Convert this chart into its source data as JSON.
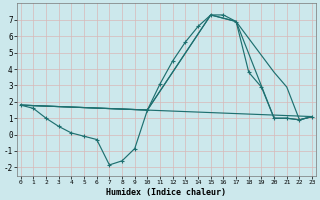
{
  "xlabel": "Humidex (Indice chaleur)",
  "bg_color": "#cce8ec",
  "grid_color": "#e8e8e8",
  "line_color": "#1e7070",
  "xlim": [
    0,
    23
  ],
  "ylim": [
    -2.5,
    8.0
  ],
  "yticks": [
    -2,
    -1,
    0,
    1,
    2,
    3,
    4,
    5,
    6,
    7
  ],
  "xticks": [
    0,
    1,
    2,
    3,
    4,
    5,
    6,
    7,
    8,
    9,
    10,
    11,
    12,
    13,
    14,
    15,
    16,
    17,
    18,
    19,
    20,
    21,
    22,
    23
  ],
  "line1_x": [
    0,
    1,
    2,
    3,
    4,
    5,
    6,
    7,
    8,
    9,
    10,
    11,
    12,
    13,
    14,
    15,
    16,
    17,
    18,
    19,
    20,
    21,
    22,
    23
  ],
  "line1_y": [
    1.8,
    1.6,
    1.0,
    0.5,
    0.1,
    -0.1,
    -0.3,
    -1.85,
    -1.6,
    -0.85,
    1.5,
    3.1,
    4.5,
    5.65,
    6.6,
    7.3,
    7.3,
    6.9,
    3.8,
    2.9,
    1.0,
    1.0,
    0.9,
    1.1
  ],
  "line2_x": [
    0,
    23
  ],
  "line2_y": [
    1.8,
    1.1
  ],
  "line3_x": [
    0,
    10,
    15,
    17,
    20,
    21,
    22,
    23
  ],
  "line3_y": [
    1.8,
    1.5,
    7.3,
    6.9,
    3.8,
    2.9,
    0.9,
    1.1
  ],
  "line4_x": [
    0,
    10,
    15,
    17,
    20,
    21,
    22,
    23
  ],
  "line4_y": [
    1.8,
    1.5,
    7.3,
    6.9,
    1.0,
    1.0,
    0.9,
    1.1
  ]
}
